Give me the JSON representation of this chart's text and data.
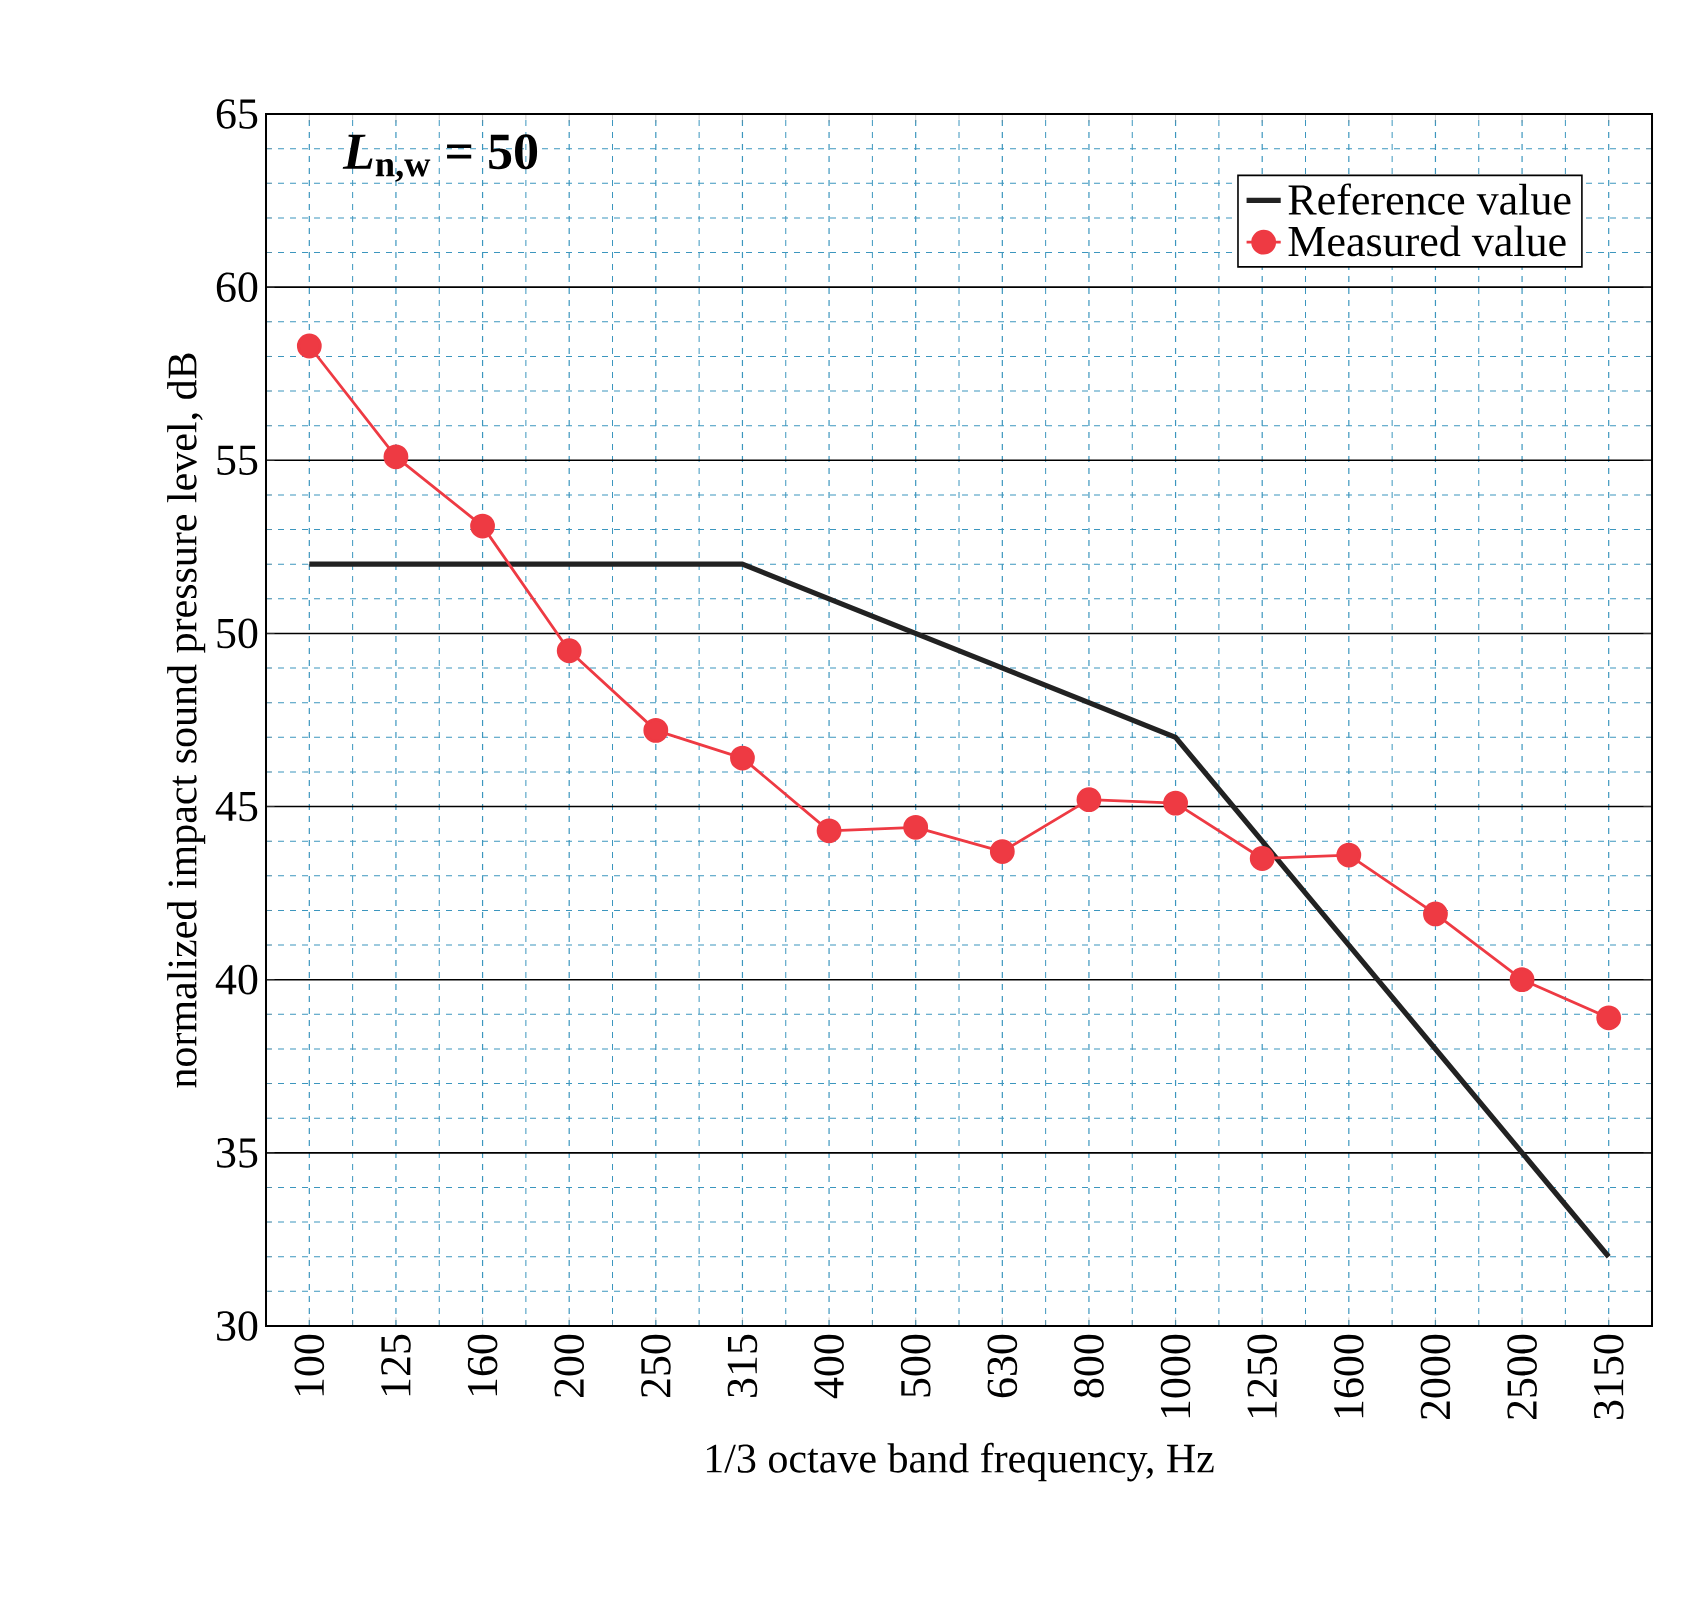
{
  "chart_data": {
    "type": "line",
    "xlabel": "1/3 octave band frequency, Hz",
    "ylabel": "normalized impact sound pressure level, dB",
    "categories": [
      "100",
      "125",
      "160",
      "200",
      "250",
      "315",
      "400",
      "500",
      "630",
      "800",
      "1000",
      "1250",
      "1600",
      "2000",
      "2500",
      "3150"
    ],
    "series": [
      {
        "name": "Reference value",
        "color": "#222222",
        "marker": "none",
        "values": [
          52,
          52,
          52,
          52,
          52,
          52,
          51,
          50,
          49,
          48,
          47,
          44,
          41,
          38,
          35,
          32
        ]
      },
      {
        "name": "Measured value",
        "color": "#ee3a43",
        "marker": "circle",
        "values": [
          58.3,
          55.1,
          53.1,
          49.5,
          47.2,
          46.4,
          44.3,
          44.4,
          43.7,
          45.2,
          45.1,
          43.5,
          43.6,
          41.9,
          40.0,
          38.9
        ]
      }
    ],
    "ylim": [
      30,
      65
    ],
    "yticks": [
      30,
      35,
      40,
      45,
      50,
      55,
      60,
      65
    ],
    "annotations": [
      "*L*$_{n,w}$ = 50"
    ],
    "grid": true,
    "legend": "top right"
  }
}
